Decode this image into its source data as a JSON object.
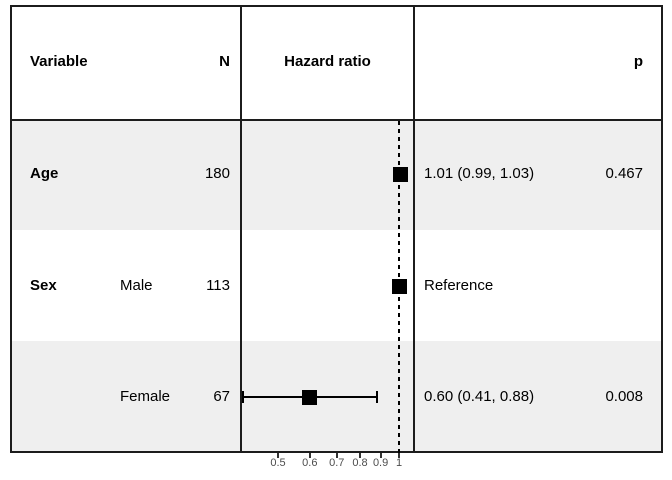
{
  "table": {
    "headers": {
      "variable": "Variable",
      "n": "N",
      "hazard_ratio": "Hazard ratio",
      "p": "p"
    },
    "rows": [
      {
        "variable": "Age",
        "level": "",
        "n": "180",
        "estimate": "1.01 (0.99, 1.03)",
        "p": "0.467"
      },
      {
        "variable": "Sex",
        "level": "Male",
        "n": "113",
        "estimate": "Reference",
        "p": ""
      },
      {
        "variable": "",
        "level": "Female",
        "n": "67",
        "estimate": "0.60 (0.41, 0.88)",
        "p": "0.008"
      }
    ]
  },
  "chart_data": {
    "type": "scatter",
    "subtype": "forest-plot",
    "title": "",
    "xlabel": "",
    "x_scale": "log",
    "xlim": [
      0.41,
      1.05
    ],
    "x_ticks": [
      0.5,
      0.6,
      0.7,
      0.8,
      0.9,
      1
    ],
    "x_tick_labels": [
      "0.5",
      "0.6",
      "0.7",
      "0.8",
      "0.9",
      "1"
    ],
    "reference_line": 1,
    "series": [
      {
        "label": "Age",
        "n": 180,
        "hr": 1.01,
        "ci_low": 0.99,
        "ci_high": 1.03,
        "p": 0.467,
        "reference": false
      },
      {
        "label": "Sex Male",
        "n": 113,
        "hr": 1.0,
        "ci_low": null,
        "ci_high": null,
        "p": null,
        "reference": true
      },
      {
        "label": "Sex Female",
        "n": 67,
        "hr": 0.6,
        "ci_low": 0.41,
        "ci_high": 0.88,
        "p": 0.008,
        "reference": false
      }
    ],
    "legend": null,
    "grid": false
  },
  "colors": {
    "row_stripe": "#efefef",
    "border": "#1c1c1c",
    "marker": "#000000",
    "tick_label": "#4d4d4d",
    "text": "#000000",
    "background": "#ffffff"
  }
}
